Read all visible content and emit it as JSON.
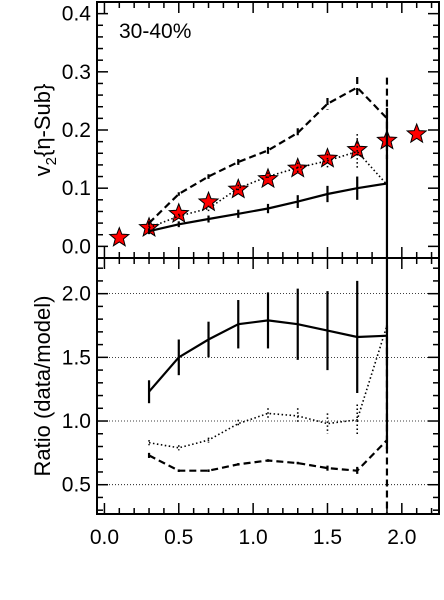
{
  "chart_data": [
    {
      "type": "line",
      "panel": "top",
      "title": "",
      "annotation": "30-40%",
      "xlabel": "",
      "ylabel": "v{η-Sub}",
      "ylabel_sub": "2",
      "xlim": [
        -0.05,
        2.25
      ],
      "ylim": [
        -0.02,
        0.42
      ],
      "yticks": [
        0.0,
        0.1,
        0.2,
        0.3,
        0.4
      ],
      "ytick_labels": [
        "0.0",
        "0.1",
        "0.2",
        "0.3",
        "0.4"
      ],
      "grid": false,
      "series": [
        {
          "style": "stars",
          "color": "#ff0000",
          "x": [
            0.1,
            0.3,
            0.5,
            0.7,
            0.9,
            1.1,
            1.3,
            1.5,
            1.7,
            1.9,
            2.1
          ],
          "y": [
            0.015,
            0.032,
            0.056,
            0.076,
            0.098,
            0.116,
            0.134,
            0.151,
            0.166,
            0.182,
            0.193
          ]
        },
        {
          "style": "solid",
          "x": [
            0.3,
            0.5,
            0.7,
            0.9,
            1.1,
            1.3,
            1.5,
            1.7,
            1.9
          ],
          "y": [
            0.026,
            0.038,
            0.047,
            0.056,
            0.065,
            0.077,
            0.09,
            0.1,
            0.108
          ],
          "err": [
            0.005,
            0.005,
            0.006,
            0.007,
            0.008,
            0.011,
            0.014,
            0.02,
            0.13
          ]
        },
        {
          "style": "dotted",
          "x": [
            0.3,
            0.5,
            0.7,
            0.9,
            1.1,
            1.3,
            1.5,
            1.7,
            1.9
          ],
          "y": [
            0.032,
            0.052,
            0.065,
            0.1,
            0.12,
            0.135,
            0.147,
            0.163,
            0.106
          ],
          "err": [
            0.004,
            0.004,
            0.005,
            0.006,
            0.007,
            0.009,
            0.012,
            0.03,
            0.105
          ]
        },
        {
          "style": "dashed",
          "x": [
            0.3,
            0.5,
            0.7,
            0.9,
            1.1,
            1.3,
            1.5,
            1.7,
            1.9
          ],
          "y": [
            0.04,
            0.09,
            0.12,
            0.145,
            0.165,
            0.195,
            0.245,
            0.273,
            0.22
          ],
          "err": [
            0.003,
            0.003,
            0.004,
            0.005,
            0.006,
            0.008,
            0.01,
            0.018,
            0.07
          ]
        }
      ]
    },
    {
      "type": "line",
      "panel": "bottom",
      "title": "",
      "xlabel": "",
      "ylabel": "Ratio (data/model)",
      "xlim": [
        -0.05,
        2.25
      ],
      "ylim": [
        0.27,
        2.28
      ],
      "xticks": [
        0.0,
        0.5,
        1.0,
        1.5,
        2.0
      ],
      "xtick_labels": [
        "0.0",
        "0.5",
        "1.0",
        "1.5",
        "2.0"
      ],
      "yticks": [
        0.5,
        1.0,
        1.5,
        2.0
      ],
      "ytick_labels": [
        "0.5",
        "1.0",
        "1.5",
        "2.0"
      ],
      "grid": true,
      "grid_lines_y": [
        0.5,
        1.0,
        1.5,
        2.0
      ],
      "series": [
        {
          "style": "solid",
          "x": [
            0.3,
            0.5,
            0.7,
            0.9,
            1.1,
            1.3,
            1.5,
            1.7,
            1.9
          ],
          "y": [
            1.23,
            1.5,
            1.64,
            1.76,
            1.79,
            1.76,
            1.71,
            1.66,
            1.67
          ],
          "err": [
            0.09,
            0.14,
            0.14,
            0.19,
            0.22,
            0.28,
            0.31,
            0.44,
            0.89
          ]
        },
        {
          "style": "dotted",
          "x": [
            0.3,
            0.5,
            0.7,
            0.9,
            1.1,
            1.3,
            1.5,
            1.7,
            1.9
          ],
          "y": [
            0.83,
            0.79,
            0.85,
            0.98,
            1.06,
            1.04,
            0.98,
            1.01,
            1.75
          ],
          "err": [
            0.02,
            0.02,
            0.02,
            0.03,
            0.04,
            0.06,
            0.08,
            0.12,
            0.9
          ]
        },
        {
          "style": "dashed",
          "x": [
            0.3,
            0.5,
            0.7,
            0.9,
            1.1,
            1.3,
            1.5,
            1.7,
            1.9
          ],
          "y": [
            0.73,
            0.61,
            0.61,
            0.66,
            0.69,
            0.67,
            0.63,
            0.61,
            0.85
          ],
          "err": [
            0.02,
            0.01,
            0.01,
            0.01,
            0.01,
            0.01,
            0.02,
            0.03,
            0.9
          ]
        }
      ]
    }
  ]
}
